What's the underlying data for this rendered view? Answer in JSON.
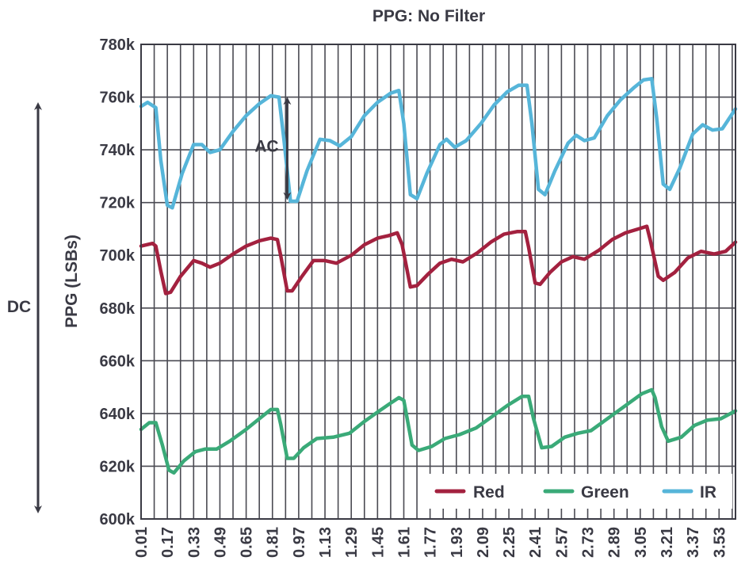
{
  "chart_data": {
    "type": "line",
    "title": "PPG: No Filter",
    "xlabel": "",
    "ylabel": "PPG (LSBs)",
    "ylim": [
      600000,
      780000
    ],
    "xlim": [
      0.01,
      3.63
    ],
    "y_ticks": [
      {
        "value": 600000,
        "label": "600k"
      },
      {
        "value": 620000,
        "label": "620k"
      },
      {
        "value": 640000,
        "label": "640k"
      },
      {
        "value": 660000,
        "label": "660k"
      },
      {
        "value": 680000,
        "label": "680k"
      },
      {
        "value": 700000,
        "label": "700k"
      },
      {
        "value": 720000,
        "label": "720k"
      },
      {
        "value": 740000,
        "label": "740k"
      },
      {
        "value": 760000,
        "label": "760k"
      },
      {
        "value": 780000,
        "label": "780k"
      }
    ],
    "x_ticks": [
      "0.01",
      "0.17",
      "0.33",
      "0.49",
      "0.65",
      "0.81",
      "0.97",
      "1.13",
      "1.29",
      "1.45",
      "1.61",
      "1.77",
      "1.93",
      "2.09",
      "2.25",
      "2.41",
      "2.57",
      "2.73",
      "2.89",
      "3.05",
      "3.21",
      "3.37",
      "3.53"
    ],
    "grid": true,
    "legend_position": "bottom-right",
    "series": [
      {
        "name": "Red",
        "color": "#a3213f",
        "points": [
          [
            0.01,
            703500
          ],
          [
            0.08,
            704500
          ],
          [
            0.1,
            703500
          ],
          [
            0.13,
            694000
          ],
          [
            0.16,
            685500
          ],
          [
            0.19,
            686000
          ],
          [
            0.25,
            692000
          ],
          [
            0.33,
            698000
          ],
          [
            0.38,
            697000
          ],
          [
            0.43,
            695500
          ],
          [
            0.49,
            697000
          ],
          [
            0.57,
            700500
          ],
          [
            0.65,
            703500
          ],
          [
            0.73,
            705500
          ],
          [
            0.8,
            706500
          ],
          [
            0.84,
            706000
          ],
          [
            0.86,
            700000
          ],
          [
            0.9,
            686500
          ],
          [
            0.93,
            686500
          ],
          [
            0.99,
            692000
          ],
          [
            1.06,
            698000
          ],
          [
            1.13,
            698000
          ],
          [
            1.2,
            697000
          ],
          [
            1.29,
            700000
          ],
          [
            1.37,
            704000
          ],
          [
            1.45,
            706500
          ],
          [
            1.52,
            707500
          ],
          [
            1.57,
            708500
          ],
          [
            1.6,
            704000
          ],
          [
            1.65,
            688000
          ],
          [
            1.69,
            688500
          ],
          [
            1.76,
            693000
          ],
          [
            1.83,
            697000
          ],
          [
            1.9,
            698500
          ],
          [
            1.97,
            697500
          ],
          [
            2.06,
            701000
          ],
          [
            2.14,
            705000
          ],
          [
            2.22,
            708000
          ],
          [
            2.3,
            709000
          ],
          [
            2.35,
            709000
          ],
          [
            2.37,
            703000
          ],
          [
            2.41,
            689500
          ],
          [
            2.44,
            689000
          ],
          [
            2.5,
            693500
          ],
          [
            2.57,
            697500
          ],
          [
            2.64,
            699500
          ],
          [
            2.71,
            698500
          ],
          [
            2.8,
            702000
          ],
          [
            2.88,
            706000
          ],
          [
            2.96,
            708500
          ],
          [
            3.04,
            710000
          ],
          [
            3.09,
            711000
          ],
          [
            3.11,
            706000
          ],
          [
            3.16,
            692000
          ],
          [
            3.19,
            690500
          ],
          [
            3.26,
            693500
          ],
          [
            3.34,
            699000
          ],
          [
            3.42,
            701500
          ],
          [
            3.5,
            700500
          ],
          [
            3.57,
            701500
          ],
          [
            3.63,
            705000
          ]
        ]
      },
      {
        "name": "Green",
        "color": "#3aaa78",
        "points": [
          [
            0.01,
            634000
          ],
          [
            0.06,
            636500
          ],
          [
            0.1,
            636500
          ],
          [
            0.14,
            628000
          ],
          [
            0.18,
            618500
          ],
          [
            0.21,
            617500
          ],
          [
            0.27,
            622000
          ],
          [
            0.34,
            625500
          ],
          [
            0.4,
            626500
          ],
          [
            0.47,
            626500
          ],
          [
            0.55,
            629500
          ],
          [
            0.65,
            634000
          ],
          [
            0.74,
            638500
          ],
          [
            0.8,
            641500
          ],
          [
            0.84,
            641500
          ],
          [
            0.86,
            636000
          ],
          [
            0.9,
            623000
          ],
          [
            0.94,
            623000
          ],
          [
            1.0,
            627000
          ],
          [
            1.08,
            630500
          ],
          [
            1.18,
            631000
          ],
          [
            1.28,
            632500
          ],
          [
            1.37,
            637000
          ],
          [
            1.45,
            640500
          ],
          [
            1.52,
            643500
          ],
          [
            1.58,
            646000
          ],
          [
            1.61,
            645000
          ],
          [
            1.66,
            628000
          ],
          [
            1.7,
            626000
          ],
          [
            1.78,
            627500
          ],
          [
            1.86,
            630500
          ],
          [
            1.95,
            632000
          ],
          [
            2.05,
            634500
          ],
          [
            2.14,
            638500
          ],
          [
            2.24,
            643000
          ],
          [
            2.33,
            646500
          ],
          [
            2.37,
            646500
          ],
          [
            2.4,
            638000
          ],
          [
            2.45,
            627000
          ],
          [
            2.51,
            627500
          ],
          [
            2.59,
            631000
          ],
          [
            2.67,
            632500
          ],
          [
            2.75,
            633500
          ],
          [
            2.86,
            638500
          ],
          [
            2.96,
            643000
          ],
          [
            3.06,
            647500
          ],
          [
            3.12,
            649000
          ],
          [
            3.14,
            646000
          ],
          [
            3.18,
            635000
          ],
          [
            3.22,
            629500
          ],
          [
            3.3,
            631000
          ],
          [
            3.38,
            635500
          ],
          [
            3.46,
            637500
          ],
          [
            3.54,
            638000
          ],
          [
            3.63,
            641000
          ]
        ]
      },
      {
        "name": "IR",
        "color": "#56b5d9",
        "points": [
          [
            0.01,
            756500
          ],
          [
            0.05,
            758000
          ],
          [
            0.1,
            756000
          ],
          [
            0.13,
            736000
          ],
          [
            0.17,
            719000
          ],
          [
            0.2,
            718000
          ],
          [
            0.26,
            731000
          ],
          [
            0.33,
            742000
          ],
          [
            0.38,
            742000
          ],
          [
            0.43,
            739000
          ],
          [
            0.49,
            740000
          ],
          [
            0.57,
            747000
          ],
          [
            0.65,
            753000
          ],
          [
            0.73,
            757500
          ],
          [
            0.8,
            760500
          ],
          [
            0.85,
            760000
          ],
          [
            0.88,
            744000
          ],
          [
            0.92,
            720500
          ],
          [
            0.96,
            720500
          ],
          [
            1.02,
            732000
          ],
          [
            1.1,
            744000
          ],
          [
            1.16,
            743500
          ],
          [
            1.22,
            741500
          ],
          [
            1.29,
            745000
          ],
          [
            1.37,
            753000
          ],
          [
            1.45,
            758000
          ],
          [
            1.53,
            761500
          ],
          [
            1.58,
            762500
          ],
          [
            1.61,
            750000
          ],
          [
            1.65,
            723000
          ],
          [
            1.69,
            721500
          ],
          [
            1.75,
            731000
          ],
          [
            1.83,
            742000
          ],
          [
            1.87,
            744000
          ],
          [
            1.92,
            741000
          ],
          [
            1.99,
            743500
          ],
          [
            2.08,
            750000
          ],
          [
            2.16,
            757000
          ],
          [
            2.24,
            762000
          ],
          [
            2.31,
            764500
          ],
          [
            2.36,
            764500
          ],
          [
            2.39,
            750000
          ],
          [
            2.43,
            725000
          ],
          [
            2.47,
            723000
          ],
          [
            2.53,
            732000
          ],
          [
            2.61,
            742500
          ],
          [
            2.66,
            745500
          ],
          [
            2.71,
            743500
          ],
          [
            2.77,
            744500
          ],
          [
            2.85,
            753000
          ],
          [
            2.93,
            759000
          ],
          [
            3.01,
            763500
          ],
          [
            3.07,
            766500
          ],
          [
            3.12,
            767000
          ],
          [
            3.15,
            752000
          ],
          [
            3.19,
            727000
          ],
          [
            3.23,
            725000
          ],
          [
            3.29,
            733000
          ],
          [
            3.37,
            746000
          ],
          [
            3.43,
            749500
          ],
          [
            3.49,
            747500
          ],
          [
            3.55,
            748000
          ],
          [
            3.63,
            755500
          ]
        ]
      }
    ],
    "annotations": {
      "ac_label": "AC",
      "dc_label": "DC",
      "ac_range": [
        720000,
        761000
      ],
      "ac_x": 0.9
    }
  }
}
